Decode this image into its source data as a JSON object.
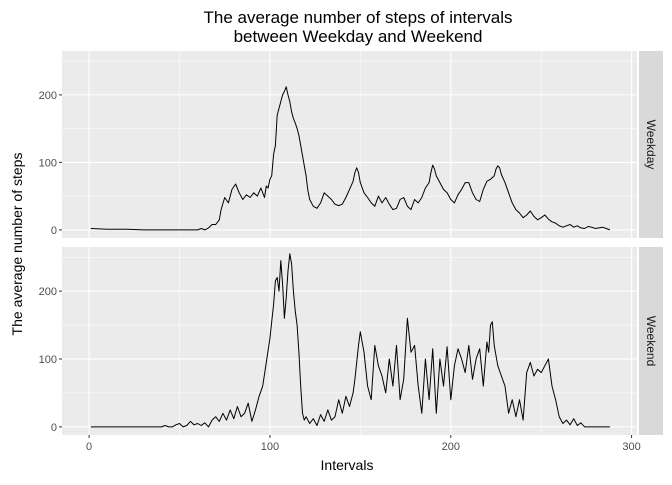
{
  "chart_data": {
    "type": "line",
    "title_lines": [
      "The average number of steps of intervals",
      "between Weekday and Weekend"
    ],
    "xlabel": "Intervals",
    "ylabel": "The average number of steps",
    "xlim": [
      -15,
      303
    ],
    "xticks": [
      0,
      100,
      200,
      300
    ],
    "ylim": [
      -12,
      265
    ],
    "yticks": [
      0,
      100,
      200
    ],
    "grid": true,
    "facets": [
      {
        "name": "Weekday",
        "x": [
          1,
          10,
          20,
          30,
          40,
          50,
          55,
          60,
          62,
          64,
          66,
          68,
          70,
          72,
          73,
          75,
          77,
          79,
          81,
          83,
          85,
          87,
          89,
          91,
          93,
          95,
          97,
          98,
          99,
          100,
          101,
          102,
          103,
          104,
          105,
          106,
          107,
          108,
          109,
          110,
          111,
          112,
          113,
          114,
          115,
          116,
          117,
          118,
          119,
          120,
          121,
          122,
          124,
          126,
          128,
          130,
          132,
          134,
          136,
          138,
          140,
          142,
          144,
          146,
          147,
          148,
          149,
          150,
          152,
          154,
          156,
          158,
          160,
          162,
          164,
          166,
          168,
          170,
          172,
          174,
          176,
          178,
          180,
          182,
          184,
          186,
          188,
          189,
          190,
          191,
          192,
          194,
          196,
          198,
          200,
          202,
          204,
          206,
          208,
          210,
          212,
          214,
          216,
          218,
          220,
          222,
          224,
          225,
          226,
          227,
          228,
          230,
          232,
          234,
          236,
          238,
          240,
          242,
          244,
          246,
          248,
          250,
          252,
          254,
          256,
          258,
          260,
          262,
          264,
          266,
          268,
          270,
          272,
          274,
          276,
          278,
          280,
          282,
          284,
          286,
          288
        ],
        "y": [
          2,
          1,
          1,
          0,
          0,
          0,
          0,
          0,
          2,
          0,
          3,
          8,
          8,
          15,
          30,
          48,
          40,
          60,
          68,
          55,
          45,
          52,
          48,
          55,
          50,
          62,
          48,
          65,
          62,
          75,
          80,
          112,
          125,
          170,
          180,
          190,
          200,
          205,
          212,
          200,
          190,
          175,
          165,
          158,
          150,
          140,
          125,
          110,
          95,
          80,
          58,
          45,
          35,
          32,
          40,
          55,
          50,
          45,
          38,
          36,
          38,
          48,
          60,
          72,
          85,
          92,
          85,
          70,
          55,
          48,
          40,
          35,
          50,
          40,
          48,
          38,
          30,
          32,
          45,
          48,
          35,
          30,
          45,
          40,
          48,
          62,
          70,
          85,
          96,
          90,
          80,
          70,
          60,
          55,
          45,
          40,
          52,
          60,
          70,
          70,
          55,
          45,
          42,
          60,
          72,
          75,
          80,
          90,
          95,
          92,
          82,
          70,
          55,
          40,
          30,
          25,
          18,
          22,
          28,
          20,
          15,
          18,
          22,
          16,
          12,
          10,
          6,
          4,
          6,
          8,
          4,
          6,
          3,
          2,
          5,
          4,
          2,
          3,
          4,
          2,
          0
        ]
      },
      {
        "name": "Weekend",
        "x": [
          1,
          20,
          30,
          40,
          42,
          44,
          46,
          48,
          50,
          52,
          54,
          56,
          58,
          60,
          62,
          64,
          66,
          68,
          70,
          72,
          74,
          76,
          78,
          80,
          82,
          84,
          86,
          88,
          90,
          92,
          94,
          96,
          98,
          100,
          101,
          102,
          103,
          104,
          105,
          106,
          107,
          108,
          109,
          110,
          111,
          112,
          113,
          114,
          115,
          116,
          117,
          118,
          119,
          120,
          122,
          124,
          126,
          128,
          130,
          132,
          134,
          136,
          138,
          140,
          142,
          144,
          146,
          147,
          148,
          149,
          150,
          152,
          154,
          156,
          158,
          160,
          162,
          164,
          166,
          168,
          170,
          172,
          174,
          176,
          178,
          180,
          182,
          184,
          186,
          188,
          190,
          192,
          194,
          196,
          198,
          200,
          202,
          204,
          206,
          208,
          210,
          212,
          214,
          216,
          218,
          220,
          221,
          222,
          223,
          224,
          226,
          228,
          230,
          232,
          234,
          236,
          238,
          240,
          242,
          244,
          246,
          248,
          250,
          252,
          254,
          256,
          258,
          260,
          262,
          264,
          266,
          268,
          270,
          272,
          274,
          276,
          278,
          280,
          282,
          284,
          286,
          288
        ],
        "y": [
          0,
          0,
          0,
          0,
          2,
          0,
          0,
          3,
          5,
          0,
          2,
          8,
          3,
          5,
          2,
          6,
          0,
          10,
          15,
          8,
          20,
          10,
          25,
          12,
          30,
          15,
          20,
          35,
          8,
          25,
          45,
          60,
          95,
          130,
          155,
          180,
          215,
          220,
          200,
          245,
          210,
          160,
          190,
          230,
          255,
          240,
          200,
          170,
          150,
          110,
          60,
          20,
          10,
          15,
          5,
          12,
          2,
          18,
          8,
          25,
          10,
          15,
          40,
          20,
          45,
          30,
          50,
          70,
          95,
          120,
          140,
          110,
          60,
          40,
          120,
          90,
          75,
          50,
          100,
          60,
          120,
          40,
          70,
          160,
          110,
          120,
          60,
          20,
          100,
          40,
          115,
          20,
          100,
          60,
          118,
          40,
          90,
          115,
          100,
          80,
          120,
          70,
          100,
          115,
          60,
          125,
          110,
          150,
          155,
          120,
          90,
          75,
          60,
          20,
          40,
          15,
          40,
          10,
          80,
          95,
          75,
          85,
          80,
          90,
          100,
          60,
          40,
          15,
          5,
          10,
          3,
          12,
          2,
          6,
          0,
          0,
          0,
          0,
          0,
          0,
          0,
          0
        ]
      }
    ]
  },
  "colors": {
    "panel_background": "#ebebeb",
    "grid_major": "#ffffff",
    "strip_background": "#d9d9d9",
    "line": "#000000",
    "tick_text": "#4d4d4d"
  }
}
